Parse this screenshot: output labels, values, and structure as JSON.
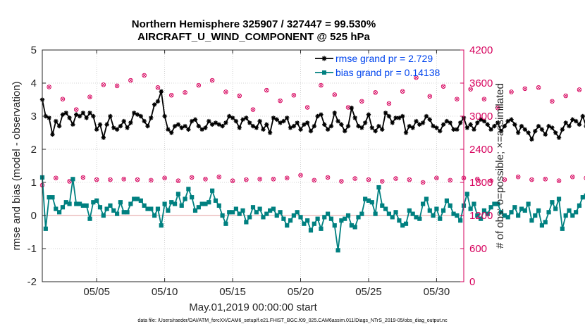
{
  "title_line1": "Northern Hemisphere 325907 / 327447 = 99.530%",
  "title_line2": "AIRCRAFT_U_WIND_COMPONENT @ 525 hPa",
  "footer": "data file: /Users/raeder/DAI/ATM_forcXX/CAM6_setup/f.e21.FHIST_BGC.f09_025.CAM6assim.011/Diags_NTrS_2019-05/obs_diag_output.nc",
  "colors": {
    "rmse": "#000000",
    "bias": "#008080",
    "obs": "#d6005c",
    "zero_line": "#e8b0b0",
    "legend_text": "#0044ee"
  },
  "chart_data": {
    "type": "line",
    "xlabel": "May.01,2019 00:00:00 start",
    "ylabel_left": "rmse and bias (model - observation)",
    "ylabel_right": "# of obs: o=possible; ×=assimilated",
    "x_tick_labels": [
      "05/05",
      "05/10",
      "05/15",
      "05/20",
      "05/25",
      "05/30"
    ],
    "x_tick_days": [
      5,
      10,
      15,
      20,
      25,
      30
    ],
    "xlim_days": [
      1,
      32
    ],
    "ylim_left": [
      -2,
      5
    ],
    "y_ticks_left": [
      "-2",
      "-1",
      "0",
      "1",
      "2",
      "3",
      "4",
      "5"
    ],
    "ylim_right": [
      0,
      4200
    ],
    "y_ticks_right": [
      "0",
      "600",
      "1200",
      "1800",
      "2400",
      "3000",
      "3600",
      "4200"
    ],
    "x_step_days": 0.25,
    "legend": [
      "rmse grand pr = 2.729",
      "bias grand pr = 0.14138"
    ],
    "legend_position": "top-right",
    "series": [
      {
        "name": "rmse grand pr = 2.729",
        "axis": "left",
        "marker": "asterisk",
        "values": [
          3.5,
          3.0,
          2.95,
          2.45,
          2.85,
          2.7,
          3.05,
          3.1,
          2.95,
          2.75,
          3.05,
          3.0,
          3.1,
          2.95,
          3.1,
          3.0,
          2.6,
          2.75,
          2.35,
          2.75,
          3.0,
          2.65,
          2.6,
          2.7,
          2.85,
          2.65,
          2.8,
          3.1,
          3.05,
          3.0,
          2.85,
          2.7,
          2.95,
          3.35,
          3.45,
          3.75,
          3.0,
          2.6,
          2.5,
          2.7,
          2.75,
          2.65,
          2.7,
          2.6,
          2.85,
          2.9,
          2.7,
          2.6,
          2.65,
          2.85,
          2.75,
          2.8,
          2.75,
          2.7,
          2.8,
          3.0,
          2.95,
          2.85,
          2.65,
          2.9,
          2.95,
          2.8,
          2.7,
          2.65,
          2.85,
          2.6,
          2.75,
          2.5,
          2.95,
          2.9,
          2.8,
          2.85,
          2.95,
          2.65,
          2.7,
          2.8,
          2.6,
          2.75,
          2.8,
          2.55,
          2.7,
          3.0,
          3.05,
          2.75,
          2.6,
          2.7,
          3.1,
          2.85,
          2.75,
          2.55,
          2.7,
          3.25,
          2.95,
          2.7,
          2.65,
          2.8,
          3.05,
          2.65,
          2.55,
          2.7,
          2.6,
          3.1,
          3.0,
          2.8,
          2.95,
          2.95,
          3.0,
          2.5,
          2.7,
          2.65,
          2.85,
          2.75,
          2.8,
          3.0,
          2.9,
          2.7,
          2.65,
          2.55,
          2.75,
          2.85,
          2.8,
          2.6,
          2.6,
          2.8,
          2.95,
          2.65,
          2.75,
          2.6,
          2.8,
          2.9,
          2.85,
          2.75,
          2.6,
          2.7,
          2.8,
          2.55,
          2.7,
          2.85,
          2.9,
          2.75,
          2.5,
          2.7,
          2.6,
          2.5,
          2.3,
          2.55,
          2.7,
          2.6,
          2.45,
          2.7,
          2.65,
          2.5,
          2.35,
          2.6,
          2.8,
          2.7,
          2.9,
          2.85,
          2.75,
          3.0,
          2.7,
          2.6,
          2.75,
          2.8,
          2.65,
          2.7,
          2.9,
          3.05,
          2.75,
          2.7,
          2.65,
          2.8,
          2.9,
          2.85,
          2.75,
          2.6,
          2.7,
          2.85,
          3.0,
          2.55,
          2.45,
          2.8,
          2.7,
          2.9,
          2.55,
          2.75,
          3.1,
          2.85,
          2.75,
          2.65,
          2.5,
          2.7,
          2.6,
          2.45,
          2.75,
          2.95,
          2.85,
          2.7,
          2.75,
          2.55,
          2.65,
          2.85,
          2.8,
          2.7,
          2.45,
          2.35,
          2.35
        ]
      },
      {
        "name": "bias grand pr = 0.14138",
        "axis": "left",
        "marker": "square",
        "values": [
          1.15,
          -0.4,
          0.55,
          0.55,
          0.2,
          0.1,
          0.25,
          0.4,
          0.35,
          1.1,
          0.35,
          0.35,
          0.3,
          0.3,
          -0.1,
          0.4,
          0.45,
          0.25,
          0.0,
          0.2,
          0.3,
          0.15,
          0.05,
          0.4,
          0.1,
          0.1,
          0.35,
          0.5,
          0.5,
          0.45,
          0.3,
          0.2,
          0.2,
          0.0,
          0.2,
          -0.3,
          0.35,
          0.15,
          0.4,
          0.35,
          0.65,
          0.3,
          0.5,
          0.8,
          0.55,
          0.15,
          0.25,
          0.35,
          0.35,
          0.4,
          0.75,
          0.45,
          0.3,
          0.0,
          -0.25,
          0.1,
          0.1,
          0.2,
          0.05,
          0.15,
          -0.2,
          -0.05,
          0.25,
          0.1,
          0.2,
          -0.05,
          0.05,
          0.15,
          0.2,
          0.0,
          0.1,
          -0.1,
          -0.3,
          -0.15,
          0.0,
          0.1,
          -0.05,
          -0.25,
          -0.15,
          -0.45,
          -0.25,
          -0.1,
          -0.4,
          -0.05,
          0.05,
          -0.1,
          -0.3,
          -1.05,
          -0.15,
          -0.1,
          0.0,
          -0.3,
          -0.35,
          -0.05,
          0.05,
          0.5,
          0.45,
          0.4,
          0.05,
          0.85,
          0.3,
          0.2,
          0.05,
          -0.05,
          0.1,
          -0.15,
          -0.3,
          -0.25,
          0.15,
          0.05,
          -0.05,
          -0.1,
          0.35,
          0.5,
          0.15,
          0.0,
          0.2,
          -0.1,
          0.15,
          0.45,
          0.3,
          0.05,
          0.0,
          -0.15,
          0.3,
          0.65,
          0.2,
          0.35,
          0.0,
          -0.1,
          0.15,
          0.05,
          0.25,
          0.35,
          0.35,
          0.1,
          0.0,
          -0.05,
          0.1,
          0.25,
          0.0,
          0.2,
          0.15,
          0.35,
          -0.15,
          0.0,
          0.15,
          -0.3,
          -0.2,
          0.1,
          0.4,
          0.2,
          0.5,
          -0.4,
          0.0,
          0.15,
          0.0,
          0.1,
          0.3,
          0.55,
          0.6,
          0.3,
          0.1,
          0.25,
          0.05,
          0.3,
          -0.2,
          0.25,
          0.1,
          0.05,
          0.4,
          0.0,
          0.25,
          0.5,
          0.05,
          -0.1,
          0.2,
          0.45,
          0.7,
          0.35,
          0.2,
          0.1,
          0.5,
          0.4,
          0.25,
          0.15,
          0.35,
          0.4,
          0.55,
          0.3,
          0.65,
          0.3,
          0.45,
          0.85,
          0.3,
          0.7,
          0.5,
          0.35,
          0.45,
          0.4,
          0.1,
          0.55,
          0.5,
          0.4
        ]
      }
    ],
    "obs_possible": {
      "axis": "right",
      "marker": "circle",
      "x_start_day": 1,
      "x_step_days": 0.5,
      "values": [
        1750,
        3530,
        1880,
        3310,
        1820,
        3120,
        1890,
        3350,
        1850,
        3570,
        1850,
        3550,
        1860,
        3650,
        1850,
        3740,
        1840,
        3520,
        1880,
        3380,
        1830,
        3430,
        1890,
        3560,
        1860,
        3650,
        1900,
        3440,
        1830,
        3370,
        1850,
        3120,
        1860,
        3470,
        1860,
        3280,
        1880,
        3380,
        1930,
        3160,
        1840,
        3560,
        1890,
        3390,
        1820,
        3160,
        1870,
        3270,
        1850,
        3430,
        1820,
        3230,
        1870,
        3450,
        1850,
        3700,
        1800,
        3360,
        1880,
        3540,
        1840,
        3310,
        1880,
        3490,
        1860,
        3310,
        1830,
        3150,
        1850,
        3440,
        1900,
        3500,
        1850,
        3520,
        1860,
        3270,
        1830,
        3370,
        1900,
        3480,
        1880,
        3170,
        1870,
        3460,
        1860,
        3540,
        1900,
        3460,
        1890,
        3400,
        1850,
        3230,
        1830,
        3230,
        1870,
        3480,
        1870,
        3520,
        1850,
        3460,
        1860,
        3590,
        1860,
        3320,
        1850,
        3510,
        1880,
        3300,
        1880,
        3410,
        1900,
        3510,
        1860,
        3240,
        1860,
        3260,
        1890,
        3370,
        1900,
        3250,
        1880,
        3260,
        1920,
        3000,
        1900,
        3120,
        1920,
        3390,
        0
      ]
    },
    "obs_assimilated": {
      "axis": "right",
      "marker": "cross",
      "x_start_day": 1,
      "x_step_days": 0.5,
      "values": [
        1750,
        3530,
        1880,
        3310,
        1820,
        3120,
        1890,
        3350,
        1850,
        3570,
        1850,
        3550,
        1860,
        3650,
        1850,
        3740,
        1840,
        3520,
        1880,
        3380,
        1830,
        3430,
        1890,
        3560,
        1860,
        3650,
        1900,
        3440,
        1830,
        3370,
        1850,
        3120,
        1860,
        3470,
        1860,
        3280,
        1880,
        3380,
        1930,
        3160,
        1840,
        3560,
        1890,
        3390,
        1820,
        3160,
        1870,
        3270,
        1850,
        3430,
        1820,
        3230,
        1870,
        3450,
        1850,
        3700,
        1800,
        3360,
        1880,
        3540,
        1840,
        3310,
        1880,
        3490,
        1860,
        3310,
        1830,
        3150,
        1850,
        3440,
        1900,
        3500,
        1850,
        3520,
        1860,
        3270,
        1830,
        3370,
        1900,
        3480,
        1880,
        3170,
        1870,
        3460,
        1860,
        3540,
        1900,
        3460,
        1890,
        3400,
        1850,
        3230,
        1830,
        3230,
        1870,
        3480,
        1870,
        3520,
        1850,
        3460,
        1860,
        3590,
        1860,
        3320,
        1850,
        3510,
        1880,
        3300,
        1880,
        3410,
        1900,
        3510,
        1860,
        3240,
        1860,
        3260,
        1890,
        3370,
        1900,
        3250,
        1880,
        3260,
        1920,
        3000,
        1900,
        3120,
        1920,
        3390,
        0
      ]
    }
  }
}
